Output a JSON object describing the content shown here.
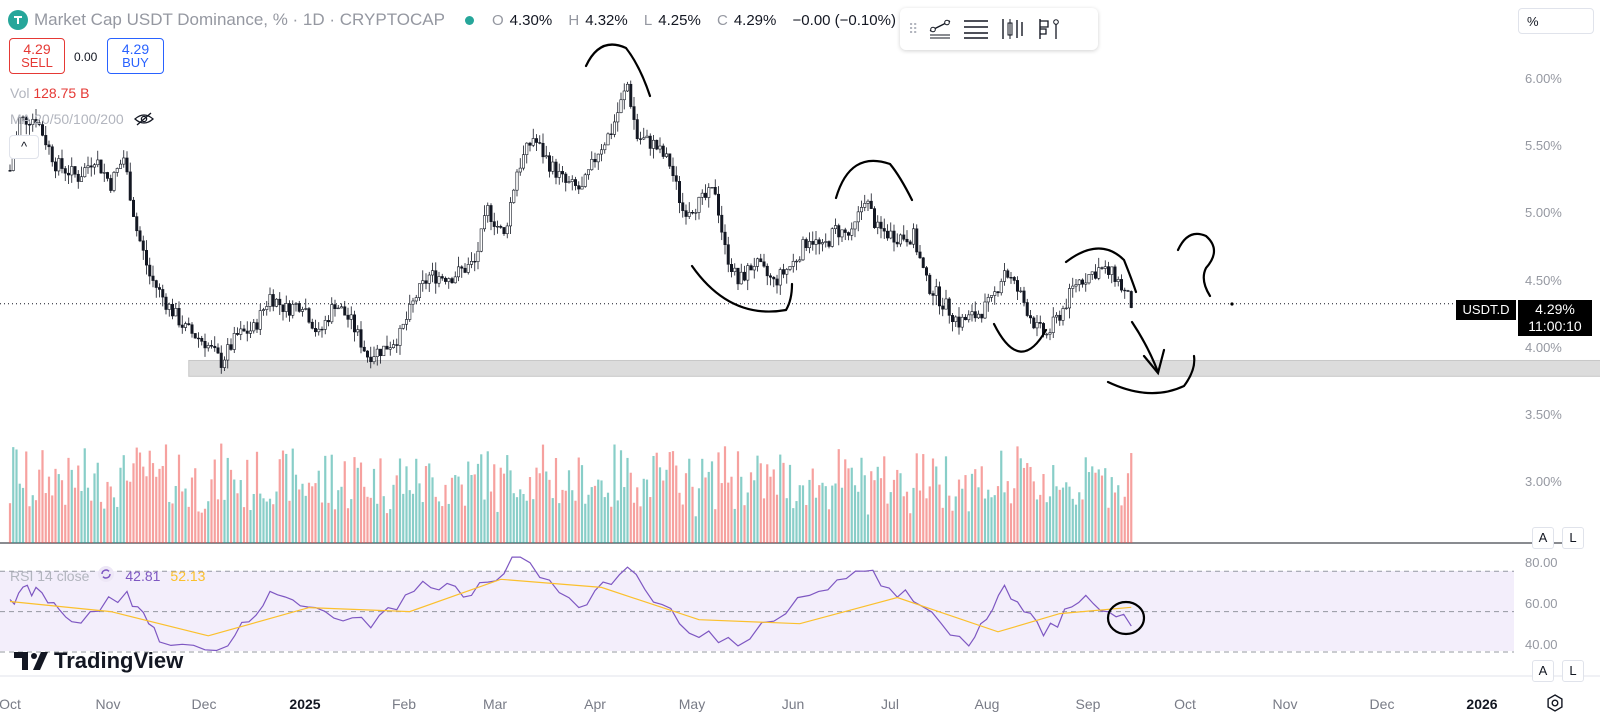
{
  "header": {
    "title": "Market Cap USDT Dominance, % · 1D · CRYPTOCAP",
    "ohlc": [
      {
        "k": "O",
        "v": "4.30%"
      },
      {
        "k": "H",
        "v": "4.32%"
      },
      {
        "k": "L",
        "v": "4.25%"
      },
      {
        "k": "C",
        "v": "4.29%"
      }
    ],
    "change": "−0.00 (−0.10%)"
  },
  "trade": {
    "sell_price": "4.29",
    "sell_label": "SELL",
    "spread": "0.00",
    "buy_price": "4.29",
    "buy_label": "BUY"
  },
  "volume_legend": {
    "label": "Vol",
    "value": "128.75 B"
  },
  "ma_legend": {
    "label": "MA 20/50/100/200"
  },
  "collapse_label": "^",
  "scale_mode": "%",
  "toolbar": {
    "grip_icon": "drag-grip-icon",
    "tools": [
      "trend-line-icon",
      "horizontal-lines-icon",
      "long-position-icon",
      "flag-icon"
    ]
  },
  "last_price": {
    "symbol": "USDT.D",
    "value": "4.29%",
    "countdown": "11:00:10"
  },
  "auto_label": "A",
  "log_label": "L",
  "rsi_legend": {
    "label": "RSI 14 close",
    "rsi": "42.81",
    "ma": "52.13"
  },
  "brand": "TradingView",
  "colors": {
    "up": "#26a69a",
    "down": "#ef5350",
    "rsi": "#7e57c2",
    "rsi_ma": "#fbc02d",
    "rsi_band": "#f3eefb"
  },
  "chart_data": {
    "type": "candlestick",
    "symbol": "USDT.D",
    "interval": "1D",
    "price_axis_ticks": [
      "6.00%",
      "5.50%",
      "5.00%",
      "4.50%",
      "4.00%",
      "3.50%",
      "3.00%"
    ],
    "price_range": [
      2.5,
      6.5
    ],
    "time_axis_ticks": [
      "Oct",
      "Nov",
      "Dec",
      "2025",
      "Feb",
      "Mar",
      "Apr",
      "May",
      "Jun",
      "Jul",
      "Aug",
      "Sep",
      "Oct",
      "Nov",
      "Dec",
      "2026"
    ],
    "close_path": [
      {
        "date": "2024-10-01",
        "close": 5.3
      },
      {
        "date": "2024-10-04",
        "close": 5.68
      },
      {
        "date": "2024-10-09",
        "close": 5.7
      },
      {
        "date": "2024-10-15",
        "close": 5.35
      },
      {
        "date": "2024-10-22",
        "close": 5.25
      },
      {
        "date": "2024-10-27",
        "close": 5.4
      },
      {
        "date": "2024-11-01",
        "close": 5.2
      },
      {
        "date": "2024-11-05",
        "close": 5.4
      },
      {
        "date": "2024-11-09",
        "close": 4.85
      },
      {
        "date": "2024-11-13",
        "close": 4.5
      },
      {
        "date": "2024-11-18",
        "close": 4.3
      },
      {
        "date": "2024-11-24",
        "close": 4.1
      },
      {
        "date": "2024-11-30",
        "close": 4.0
      },
      {
        "date": "2024-12-05",
        "close": 3.85
      },
      {
        "date": "2024-12-10",
        "close": 4.05
      },
      {
        "date": "2024-12-15",
        "close": 4.1
      },
      {
        "date": "2024-12-20",
        "close": 4.35
      },
      {
        "date": "2024-12-25",
        "close": 4.25
      },
      {
        "date": "2024-12-30",
        "close": 4.3
      },
      {
        "date": "2025-01-04",
        "close": 4.05
      },
      {
        "date": "2025-01-09",
        "close": 4.3
      },
      {
        "date": "2025-01-14",
        "close": 4.15
      },
      {
        "date": "2025-01-19",
        "close": 3.9
      },
      {
        "date": "2025-01-24",
        "close": 3.95
      },
      {
        "date": "2025-01-29",
        "close": 4.05
      },
      {
        "date": "2025-02-03",
        "close": 4.35
      },
      {
        "date": "2025-02-07",
        "close": 4.5
      },
      {
        "date": "2025-02-14",
        "close": 4.5
      },
      {
        "date": "2025-02-21",
        "close": 4.6
      },
      {
        "date": "2025-02-25",
        "close": 5.0
      },
      {
        "date": "2025-03-02",
        "close": 4.8
      },
      {
        "date": "2025-03-06",
        "close": 5.3
      },
      {
        "date": "2025-03-11",
        "close": 5.55
      },
      {
        "date": "2025-03-16",
        "close": 5.35
      },
      {
        "date": "2025-03-21",
        "close": 5.2
      },
      {
        "date": "2025-03-26",
        "close": 5.15
      },
      {
        "date": "2025-03-31",
        "close": 5.45
      },
      {
        "date": "2025-04-04",
        "close": 5.6
      },
      {
        "date": "2025-04-09",
        "close": 5.95
      },
      {
        "date": "2025-04-12",
        "close": 5.55
      },
      {
        "date": "2025-04-17",
        "close": 5.5
      },
      {
        "date": "2025-04-22",
        "close": 5.35
      },
      {
        "date": "2025-04-26",
        "close": 5.0
      },
      {
        "date": "2025-05-01",
        "close": 5.05
      },
      {
        "date": "2025-05-06",
        "close": 5.15
      },
      {
        "date": "2025-05-09",
        "close": 4.7
      },
      {
        "date": "2025-05-13",
        "close": 4.45
      },
      {
        "date": "2025-05-18",
        "close": 4.6
      },
      {
        "date": "2025-05-24",
        "close": 4.45
      },
      {
        "date": "2025-05-30",
        "close": 4.6
      },
      {
        "date": "2025-06-04",
        "close": 4.8
      },
      {
        "date": "2025-06-08",
        "close": 4.7
      },
      {
        "date": "2025-06-12",
        "close": 4.85
      },
      {
        "date": "2025-06-17",
        "close": 4.8
      },
      {
        "date": "2025-06-21",
        "close": 5.1
      },
      {
        "date": "2025-06-25",
        "close": 4.85
      },
      {
        "date": "2025-07-01",
        "close": 4.8
      },
      {
        "date": "2025-07-06",
        "close": 4.8
      },
      {
        "date": "2025-07-10",
        "close": 4.45
      },
      {
        "date": "2025-07-15",
        "close": 4.3
      },
      {
        "date": "2025-07-20",
        "close": 4.15
      },
      {
        "date": "2025-07-25",
        "close": 4.2
      },
      {
        "date": "2025-07-30",
        "close": 4.3
      },
      {
        "date": "2025-08-03",
        "close": 4.55
      },
      {
        "date": "2025-08-08",
        "close": 4.35
      },
      {
        "date": "2025-08-13",
        "close": 4.1
      },
      {
        "date": "2025-08-16",
        "close": 4.05
      },
      {
        "date": "2025-08-21",
        "close": 4.25
      },
      {
        "date": "2025-08-25",
        "close": 4.45
      },
      {
        "date": "2025-09-01",
        "close": 4.55
      },
      {
        "date": "2025-09-06",
        "close": 4.5
      },
      {
        "date": "2025-09-11",
        "close": 4.29
      }
    ],
    "support_zone": {
      "from": "2024-11-25",
      "to": "2026-03-20",
      "price_low": 3.74,
      "price_high": 3.86
    },
    "last_price_line": 4.29,
    "volume_panel": {
      "series": "Vol",
      "last_value": "128.75 B"
    },
    "rsi": {
      "period": 14,
      "source": "close",
      "last_rsi": 42.81,
      "last_ma": 52.13,
      "axis_ticks": [
        "80.00",
        "60.00",
        "40.00"
      ],
      "range": [
        30,
        80
      ],
      "bands": [
        70,
        50,
        30
      ],
      "path": [
        {
          "date": "2024-10-01",
          "rsi": 56
        },
        {
          "date": "2024-10-09",
          "rsi": 62
        },
        {
          "date": "2024-10-20",
          "rsi": 45
        },
        {
          "date": "2024-11-06",
          "rsi": 60
        },
        {
          "date": "2024-11-16",
          "rsi": 35
        },
        {
          "date": "2024-12-07",
          "rsi": 33
        },
        {
          "date": "2024-12-20",
          "rsi": 60
        },
        {
          "date": "2025-01-03",
          "rsi": 52
        },
        {
          "date": "2025-01-20",
          "rsi": 42
        },
        {
          "date": "2025-02-05",
          "rsi": 65
        },
        {
          "date": "2025-02-20",
          "rsi": 58
        },
        {
          "date": "2025-03-07",
          "rsi": 77
        },
        {
          "date": "2025-03-25",
          "rsi": 52
        },
        {
          "date": "2025-04-09",
          "rsi": 72
        },
        {
          "date": "2025-04-25",
          "rsi": 44
        },
        {
          "date": "2025-05-13",
          "rsi": 33
        },
        {
          "date": "2025-06-04",
          "rsi": 58
        },
        {
          "date": "2025-06-21",
          "rsi": 70
        },
        {
          "date": "2025-07-06",
          "rsi": 55
        },
        {
          "date": "2025-07-23",
          "rsi": 33
        },
        {
          "date": "2025-08-03",
          "rsi": 63
        },
        {
          "date": "2025-08-15",
          "rsi": 38
        },
        {
          "date": "2025-08-28",
          "rsi": 58
        },
        {
          "date": "2025-09-11",
          "rsi": 42.81
        }
      ],
      "ma_path": [
        {
          "date": "2024-10-01",
          "ma": 55
        },
        {
          "date": "2024-11-01",
          "ma": 50
        },
        {
          "date": "2024-12-01",
          "ma": 38
        },
        {
          "date": "2025-01-01",
          "ma": 52
        },
        {
          "date": "2025-02-01",
          "ma": 50
        },
        {
          "date": "2025-03-01",
          "ma": 66
        },
        {
          "date": "2025-04-01",
          "ma": 62
        },
        {
          "date": "2025-05-01",
          "ma": 46
        },
        {
          "date": "2025-06-01",
          "ma": 44
        },
        {
          "date": "2025-07-01",
          "ma": 57
        },
        {
          "date": "2025-08-01",
          "ma": 40
        },
        {
          "date": "2025-08-20",
          "ma": 49
        },
        {
          "date": "2025-09-11",
          "ma": 52.13
        }
      ]
    }
  }
}
